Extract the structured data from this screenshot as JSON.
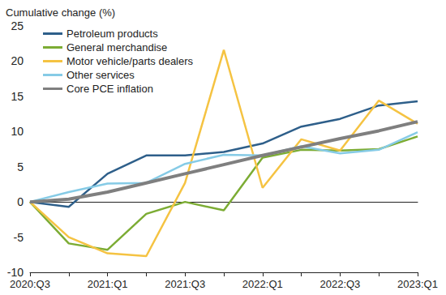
{
  "chart_data": {
    "type": "line",
    "y_label": "Cumulative change (%)",
    "categories": [
      "2020:Q3",
      null,
      "2021:Q1",
      null,
      "2021:Q3",
      null,
      "2022:Q1",
      null,
      "2022:Q3",
      null,
      "2023:Q1"
    ],
    "series": [
      {
        "name": "Petroleum products",
        "color": "#2e5f8a",
        "line_style": "solid",
        "values": [
          0,
          -0.7,
          4,
          6.6,
          6.6,
          7.1,
          8.3,
          10.7,
          11.8,
          13.7,
          14.3
        ]
      },
      {
        "name": "General merchandise",
        "color": "#7cac34",
        "line_style": "solid",
        "values": [
          0,
          -5.9,
          -6.8,
          -1.7,
          0,
          -1.2,
          6.3,
          7.4,
          7.3,
          7.5,
          9.3
        ]
      },
      {
        "name": "Motor vehicle/parts dealers",
        "color": "#f5c342",
        "line_style": "solid",
        "values": [
          0,
          -5,
          -7.3,
          -7.7,
          2.7,
          21.6,
          2,
          8.9,
          7.3,
          14.4,
          11.1
        ]
      },
      {
        "name": "Other services",
        "color": "#86cbe6",
        "line_style": "solid",
        "values": [
          0,
          1.4,
          2.6,
          2.7,
          5.4,
          6.7,
          6.6,
          7.9,
          6.9,
          7.4,
          9.9
        ]
      },
      {
        "name": "Core PCE inflation",
        "color": "#7f7f7f",
        "line_style": "thick",
        "values": [
          0,
          0.4,
          1.4,
          2.7,
          4,
          5.3,
          6.6,
          7.8,
          9,
          10.1,
          11.4
        ]
      }
    ],
    "ylim": [
      -10,
      25
    ],
    "yticks": [
      -10,
      -5,
      0,
      5,
      10,
      15,
      20,
      25
    ],
    "grid": false,
    "legend": "upper left"
  }
}
